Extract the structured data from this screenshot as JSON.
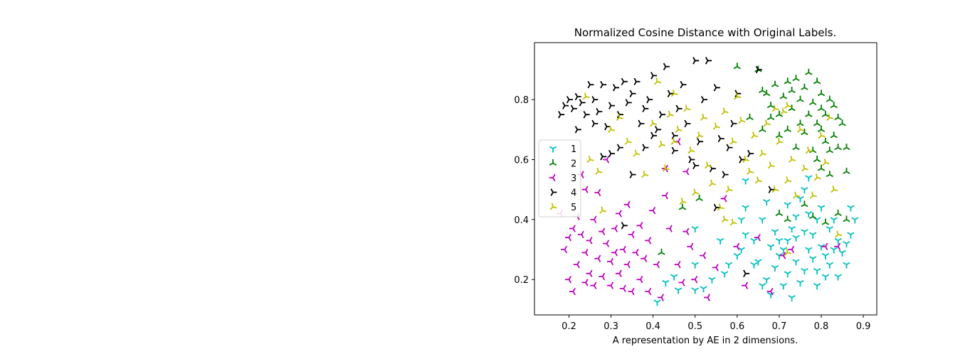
{
  "chart_data": {
    "type": "scatter",
    "title": "Normalized Cosine Distance with Original Labels.",
    "xlabel": "A representation by AE in 2 dimensions.",
    "ylabel": "",
    "xlim": [
      0.118,
      0.932
    ],
    "ylim": [
      0.082,
      0.99
    ],
    "xticks": [
      "0.2",
      "0.3",
      "0.4",
      "0.5",
      "0.6",
      "0.7",
      "0.8",
      "0.9"
    ],
    "yticks": [
      "0.2",
      "0.4",
      "0.6",
      "0.8"
    ],
    "grid": false,
    "legend_position": "center-left",
    "series": [
      {
        "name": "1",
        "color": "#00bfbf",
        "marker": "tri-down",
        "points": [
          [
            0.41,
            0.125
          ],
          [
            0.43,
            0.19
          ],
          [
            0.46,
            0.165
          ],
          [
            0.5,
            0.165
          ],
          [
            0.52,
            0.17
          ],
          [
            0.54,
            0.2
          ],
          [
            0.5,
            0.25
          ],
          [
            0.56,
            0.33
          ],
          [
            0.57,
            0.22
          ],
          [
            0.58,
            0.25
          ],
          [
            0.6,
            0.28
          ],
          [
            0.61,
            0.3
          ],
          [
            0.61,
            0.4
          ],
          [
            0.62,
            0.35
          ],
          [
            0.62,
            0.53
          ],
          [
            0.64,
            0.25
          ],
          [
            0.64,
            0.33
          ],
          [
            0.65,
            0.26
          ],
          [
            0.66,
            0.4
          ],
          [
            0.66,
            0.18
          ],
          [
            0.67,
            0.2
          ],
          [
            0.67,
            0.46
          ],
          [
            0.68,
            0.31
          ],
          [
            0.68,
            0.15
          ],
          [
            0.69,
            0.36
          ],
          [
            0.69,
            0.24
          ],
          [
            0.7,
            0.33
          ],
          [
            0.7,
            0.28
          ],
          [
            0.71,
            0.3
          ],
          [
            0.71,
            0.18
          ],
          [
            0.72,
            0.33
          ],
          [
            0.72,
            0.22
          ],
          [
            0.73,
            0.37
          ],
          [
            0.73,
            0.14
          ],
          [
            0.74,
            0.41
          ],
          [
            0.74,
            0.26
          ],
          [
            0.75,
            0.19
          ],
          [
            0.75,
            0.47
          ],
          [
            0.76,
            0.36
          ],
          [
            0.76,
            0.23
          ],
          [
            0.77,
            0.3
          ],
          [
            0.77,
            0.42
          ],
          [
            0.78,
            0.27
          ],
          [
            0.78,
            0.35
          ],
          [
            0.79,
            0.23
          ],
          [
            0.79,
            0.18
          ],
          [
            0.8,
            0.31
          ],
          [
            0.8,
            0.44
          ],
          [
            0.81,
            0.28
          ],
          [
            0.81,
            0.21
          ],
          [
            0.82,
            0.37
          ],
          [
            0.82,
            0.25
          ],
          [
            0.83,
            0.3
          ],
          [
            0.83,
            0.4
          ],
          [
            0.84,
            0.21
          ],
          [
            0.84,
            0.33
          ],
          [
            0.85,
            0.29
          ],
          [
            0.86,
            0.25
          ],
          [
            0.87,
            0.35
          ],
          [
            0.87,
            0.44
          ],
          [
            0.88,
            0.4
          ],
          [
            0.86,
            0.32
          ],
          [
            0.79,
            0.4
          ],
          [
            0.76,
            0.5
          ],
          [
            0.72,
            0.45
          ],
          [
            0.74,
            0.34
          ],
          [
            0.77,
            0.54
          ],
          [
            0.62,
            0.44
          ],
          [
            0.5,
            0.37
          ],
          [
            0.45,
            0.21
          ]
        ]
      },
      {
        "name": "2",
        "color": "#007f00",
        "marker": "tri-up",
        "points": [
          [
            0.42,
            0.29
          ],
          [
            0.51,
            0.47
          ],
          [
            0.47,
            0.44
          ],
          [
            0.6,
            0.91
          ],
          [
            0.65,
            0.9
          ],
          [
            0.66,
            0.83
          ],
          [
            0.67,
            0.82
          ],
          [
            0.68,
            0.78
          ],
          [
            0.69,
            0.85
          ],
          [
            0.7,
            0.75
          ],
          [
            0.71,
            0.81
          ],
          [
            0.72,
            0.86
          ],
          [
            0.73,
            0.83
          ],
          [
            0.74,
            0.87
          ],
          [
            0.75,
            0.8
          ],
          [
            0.76,
            0.84
          ],
          [
            0.77,
            0.89
          ],
          [
            0.78,
            0.79
          ],
          [
            0.79,
            0.86
          ],
          [
            0.8,
            0.82
          ],
          [
            0.81,
            0.75
          ],
          [
            0.82,
            0.8
          ],
          [
            0.83,
            0.78
          ],
          [
            0.84,
            0.74
          ],
          [
            0.85,
            0.72
          ],
          [
            0.8,
            0.7
          ],
          [
            0.81,
            0.66
          ],
          [
            0.82,
            0.63
          ],
          [
            0.83,
            0.68
          ],
          [
            0.84,
            0.64
          ],
          [
            0.86,
            0.64
          ],
          [
            0.78,
            0.63
          ],
          [
            0.79,
            0.6
          ],
          [
            0.8,
            0.57
          ],
          [
            0.82,
            0.55
          ],
          [
            0.76,
            0.69
          ],
          [
            0.74,
            0.64
          ],
          [
            0.72,
            0.7
          ],
          [
            0.7,
            0.68
          ],
          [
            0.68,
            0.74
          ],
          [
            0.66,
            0.7
          ],
          [
            0.86,
            0.56
          ],
          [
            0.84,
            0.42
          ],
          [
            0.86,
            0.4
          ],
          [
            0.78,
            0.41
          ],
          [
            0.81,
            0.39
          ],
          [
            0.72,
            0.4
          ],
          [
            0.7,
            0.42
          ],
          [
            0.76,
            0.45
          ],
          [
            0.75,
            0.72
          ],
          [
            0.77,
            0.75
          ],
          [
            0.79,
            0.72
          ],
          [
            0.8,
            0.77
          ],
          [
            0.63,
            0.74
          ],
          [
            0.73,
            0.77
          ]
        ]
      },
      {
        "name": "3",
        "color": "#bf00bf",
        "marker": "tri-left",
        "points": [
          [
            0.18,
            0.42
          ],
          [
            0.19,
            0.3
          ],
          [
            0.2,
            0.34
          ],
          [
            0.2,
            0.2
          ],
          [
            0.21,
            0.37
          ],
          [
            0.21,
            0.16
          ],
          [
            0.22,
            0.41
          ],
          [
            0.22,
            0.25
          ],
          [
            0.23,
            0.35
          ],
          [
            0.23,
            0.55
          ],
          [
            0.24,
            0.29
          ],
          [
            0.24,
            0.19
          ],
          [
            0.25,
            0.33
          ],
          [
            0.25,
            0.22
          ],
          [
            0.26,
            0.4
          ],
          [
            0.26,
            0.18
          ],
          [
            0.27,
            0.27
          ],
          [
            0.27,
            0.49
          ],
          [
            0.28,
            0.36
          ],
          [
            0.28,
            0.21
          ],
          [
            0.29,
            0.32
          ],
          [
            0.29,
            0.6
          ],
          [
            0.3,
            0.26
          ],
          [
            0.3,
            0.18
          ],
          [
            0.31,
            0.37
          ],
          [
            0.31,
            0.29
          ],
          [
            0.32,
            0.42
          ],
          [
            0.32,
            0.22
          ],
          [
            0.33,
            0.3
          ],
          [
            0.33,
            0.17
          ],
          [
            0.34,
            0.45
          ],
          [
            0.34,
            0.25
          ],
          [
            0.35,
            0.35
          ],
          [
            0.35,
            0.16
          ],
          [
            0.36,
            0.29
          ],
          [
            0.37,
            0.38
          ],
          [
            0.37,
            0.2
          ],
          [
            0.38,
            0.27
          ],
          [
            0.39,
            0.33
          ],
          [
            0.39,
            0.16
          ],
          [
            0.4,
            0.43
          ],
          [
            0.41,
            0.25
          ],
          [
            0.42,
            0.14
          ],
          [
            0.43,
            0.48
          ],
          [
            0.44,
            0.37
          ],
          [
            0.46,
            0.25
          ],
          [
            0.47,
            0.19
          ],
          [
            0.48,
            0.36
          ],
          [
            0.49,
            0.31
          ],
          [
            0.5,
            0.2
          ],
          [
            0.52,
            0.28
          ],
          [
            0.53,
            0.14
          ],
          [
            0.55,
            0.24
          ],
          [
            0.57,
            0.47
          ],
          [
            0.6,
            0.31
          ],
          [
            0.62,
            0.18
          ],
          [
            0.65,
            0.34
          ],
          [
            0.68,
            0.16
          ],
          [
            0.71,
            0.28
          ],
          [
            0.73,
            0.3
          ],
          [
            0.84,
            0.31
          ],
          [
            0.81,
            0.31
          ],
          [
            0.43,
            0.57
          ],
          [
            0.48,
            0.56
          ],
          [
            0.46,
            0.66
          ],
          [
            0.24,
            0.5
          ]
        ]
      },
      {
        "name": "4",
        "color": "#000000",
        "marker": "tri-right",
        "points": [
          [
            0.18,
            0.75
          ],
          [
            0.19,
            0.78
          ],
          [
            0.2,
            0.8
          ],
          [
            0.21,
            0.77
          ],
          [
            0.22,
            0.7
          ],
          [
            0.23,
            0.79
          ],
          [
            0.24,
            0.75
          ],
          [
            0.25,
            0.85
          ],
          [
            0.26,
            0.8
          ],
          [
            0.27,
            0.76
          ],
          [
            0.28,
            0.85
          ],
          [
            0.29,
            0.71
          ],
          [
            0.3,
            0.78
          ],
          [
            0.31,
            0.84
          ],
          [
            0.32,
            0.75
          ],
          [
            0.33,
            0.86
          ],
          [
            0.34,
            0.79
          ],
          [
            0.35,
            0.82
          ],
          [
            0.36,
            0.86
          ],
          [
            0.37,
            0.72
          ],
          [
            0.38,
            0.77
          ],
          [
            0.39,
            0.8
          ],
          [
            0.4,
            0.88
          ],
          [
            0.41,
            0.7
          ],
          [
            0.42,
            0.75
          ],
          [
            0.43,
            0.91
          ],
          [
            0.44,
            0.82
          ],
          [
            0.45,
            0.68
          ],
          [
            0.46,
            0.77
          ],
          [
            0.47,
            0.85
          ],
          [
            0.48,
            0.72
          ],
          [
            0.49,
            0.6
          ],
          [
            0.5,
            0.93
          ],
          [
            0.51,
            0.66
          ],
          [
            0.52,
            0.8
          ],
          [
            0.53,
            0.93
          ],
          [
            0.54,
            0.57
          ],
          [
            0.55,
            0.84
          ],
          [
            0.56,
            0.67
          ],
          [
            0.57,
            0.55
          ],
          [
            0.58,
            0.64
          ],
          [
            0.59,
            0.72
          ],
          [
            0.6,
            0.82
          ],
          [
            0.61,
            0.6
          ],
          [
            0.63,
            0.62
          ],
          [
            0.65,
            0.9
          ],
          [
            0.35,
            0.55
          ],
          [
            0.38,
            0.64
          ],
          [
            0.4,
            0.68
          ],
          [
            0.3,
            0.62
          ],
          [
            0.32,
            0.64
          ],
          [
            0.28,
            0.61
          ],
          [
            0.62,
            0.22
          ],
          [
            0.33,
            0.38
          ],
          [
            0.55,
            0.44
          ],
          [
            0.68,
            0.5
          ],
          [
            0.5,
            0.58
          ],
          [
            0.45,
            0.63
          ],
          [
            0.26,
            0.72
          ],
          [
            0.22,
            0.81
          ]
        ]
      },
      {
        "name": "5",
        "color": "#bfbf00",
        "marker": "tri-left-down",
        "points": [
          [
            0.24,
            0.81
          ],
          [
            0.25,
            0.6
          ],
          [
            0.27,
            0.56
          ],
          [
            0.28,
            0.43
          ],
          [
            0.3,
            0.7
          ],
          [
            0.32,
            0.74
          ],
          [
            0.34,
            0.66
          ],
          [
            0.36,
            0.62
          ],
          [
            0.38,
            0.55
          ],
          [
            0.4,
            0.72
          ],
          [
            0.41,
            0.86
          ],
          [
            0.42,
            0.65
          ],
          [
            0.43,
            0.57
          ],
          [
            0.44,
            0.75
          ],
          [
            0.45,
            0.82
          ],
          [
            0.46,
            0.7
          ],
          [
            0.47,
            0.46
          ],
          [
            0.48,
            0.77
          ],
          [
            0.49,
            0.63
          ],
          [
            0.5,
            0.49
          ],
          [
            0.51,
            0.68
          ],
          [
            0.52,
            0.74
          ],
          [
            0.53,
            0.58
          ],
          [
            0.54,
            0.52
          ],
          [
            0.55,
            0.71
          ],
          [
            0.56,
            0.44
          ],
          [
            0.57,
            0.76
          ],
          [
            0.58,
            0.5
          ],
          [
            0.59,
            0.66
          ],
          [
            0.6,
            0.81
          ],
          [
            0.61,
            0.73
          ],
          [
            0.62,
            0.6
          ],
          [
            0.63,
            0.56
          ],
          [
            0.64,
            0.68
          ],
          [
            0.65,
            0.53
          ],
          [
            0.66,
            0.62
          ],
          [
            0.67,
            0.72
          ],
          [
            0.68,
            0.58
          ],
          [
            0.69,
            0.5
          ],
          [
            0.7,
            0.66
          ],
          [
            0.71,
            0.76
          ],
          [
            0.72,
            0.53
          ],
          [
            0.73,
            0.6
          ],
          [
            0.74,
            0.48
          ],
          [
            0.75,
            0.7
          ],
          [
            0.76,
            0.57
          ],
          [
            0.77,
            0.63
          ],
          [
            0.78,
            0.48
          ],
          [
            0.79,
            0.54
          ],
          [
            0.8,
            0.68
          ],
          [
            0.81,
            0.59
          ],
          [
            0.82,
            0.74
          ],
          [
            0.83,
            0.5
          ],
          [
            0.84,
            0.35
          ],
          [
            0.72,
            0.78
          ],
          [
            0.69,
            0.77
          ],
          [
            0.59,
            0.39
          ],
          [
            0.57,
            0.4
          ],
          [
            0.72,
            0.29
          ],
          [
            0.45,
            0.66
          ]
        ]
      }
    ]
  }
}
